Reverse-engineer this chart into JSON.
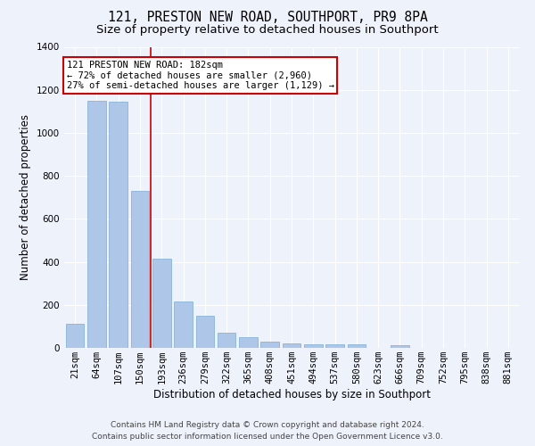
{
  "title": "121, PRESTON NEW ROAD, SOUTHPORT, PR9 8PA",
  "subtitle": "Size of property relative to detached houses in Southport",
  "xlabel": "Distribution of detached houses by size in Southport",
  "ylabel": "Number of detached properties",
  "categories": [
    "21sqm",
    "64sqm",
    "107sqm",
    "150sqm",
    "193sqm",
    "236sqm",
    "279sqm",
    "322sqm",
    "365sqm",
    "408sqm",
    "451sqm",
    "494sqm",
    "537sqm",
    "580sqm",
    "623sqm",
    "666sqm",
    "709sqm",
    "752sqm",
    "795sqm",
    "838sqm",
    "881sqm"
  ],
  "values": [
    110,
    1150,
    1145,
    730,
    415,
    215,
    150,
    70,
    48,
    30,
    22,
    15,
    15,
    15,
    0,
    13,
    0,
    0,
    0,
    0,
    0
  ],
  "bar_color": "#aec6e8",
  "bar_edge_color": "#7aadd4",
  "red_line_x": 3.5,
  "annotation_text": "121 PRESTON NEW ROAD: 182sqm\n← 72% of detached houses are smaller (2,960)\n27% of semi-detached houses are larger (1,129) →",
  "annotation_box_facecolor": "#ffffff",
  "annotation_box_edgecolor": "#cc0000",
  "red_line_color": "#cc0000",
  "footer_line1": "Contains HM Land Registry data © Crown copyright and database right 2024.",
  "footer_line2": "Contains public sector information licensed under the Open Government Licence v3.0.",
  "ylim": [
    0,
    1400
  ],
  "background_color": "#eef2fb",
  "grid_color": "#ffffff",
  "title_fontsize": 10.5,
  "subtitle_fontsize": 9.5,
  "ylabel_fontsize": 8.5,
  "xlabel_fontsize": 8.5,
  "tick_fontsize": 7.5,
  "annotation_fontsize": 7.5,
  "footer_fontsize": 6.5
}
